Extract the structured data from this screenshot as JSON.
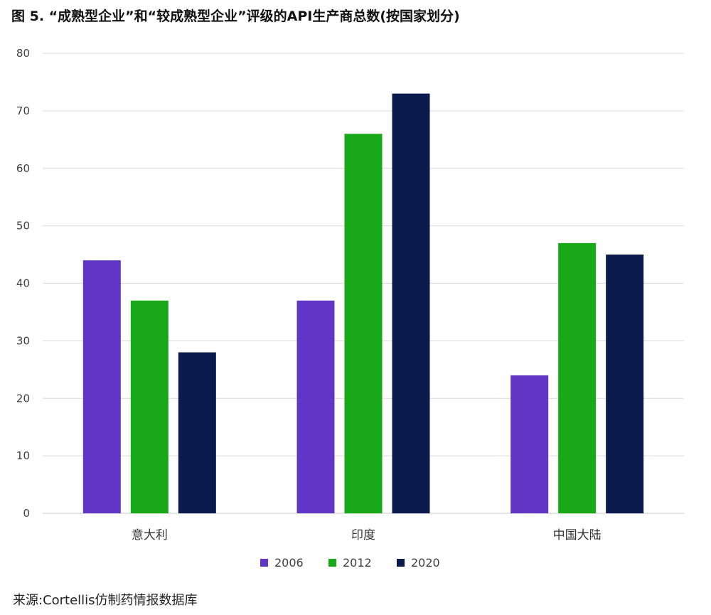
{
  "chart_data": {
    "type": "bar",
    "title": "图 5. “成熟型企业”和“较成熟型企业”评级的API生产商总数(按国家划分)",
    "categories": [
      "意大利",
      "印度",
      "中国大陆"
    ],
    "series": [
      {
        "name": "2006",
        "values": [
          44,
          37,
          24
        ],
        "color": "#6236c4"
      },
      {
        "name": "2012",
        "values": [
          37,
          66,
          47
        ],
        "color": "#18a818"
      },
      {
        "name": "2020",
        "values": [
          28,
          73,
          45
        ],
        "color": "#0b1a4c"
      }
    ],
    "ylim": [
      0,
      80
    ],
    "yticks": [
      0,
      10,
      20,
      30,
      40,
      50,
      60,
      70,
      80
    ],
    "grid": true,
    "legend_position": "bottom-center",
    "xlabel": "",
    "ylabel": ""
  },
  "source": "来源:Cortellis仿制药情报数据库"
}
